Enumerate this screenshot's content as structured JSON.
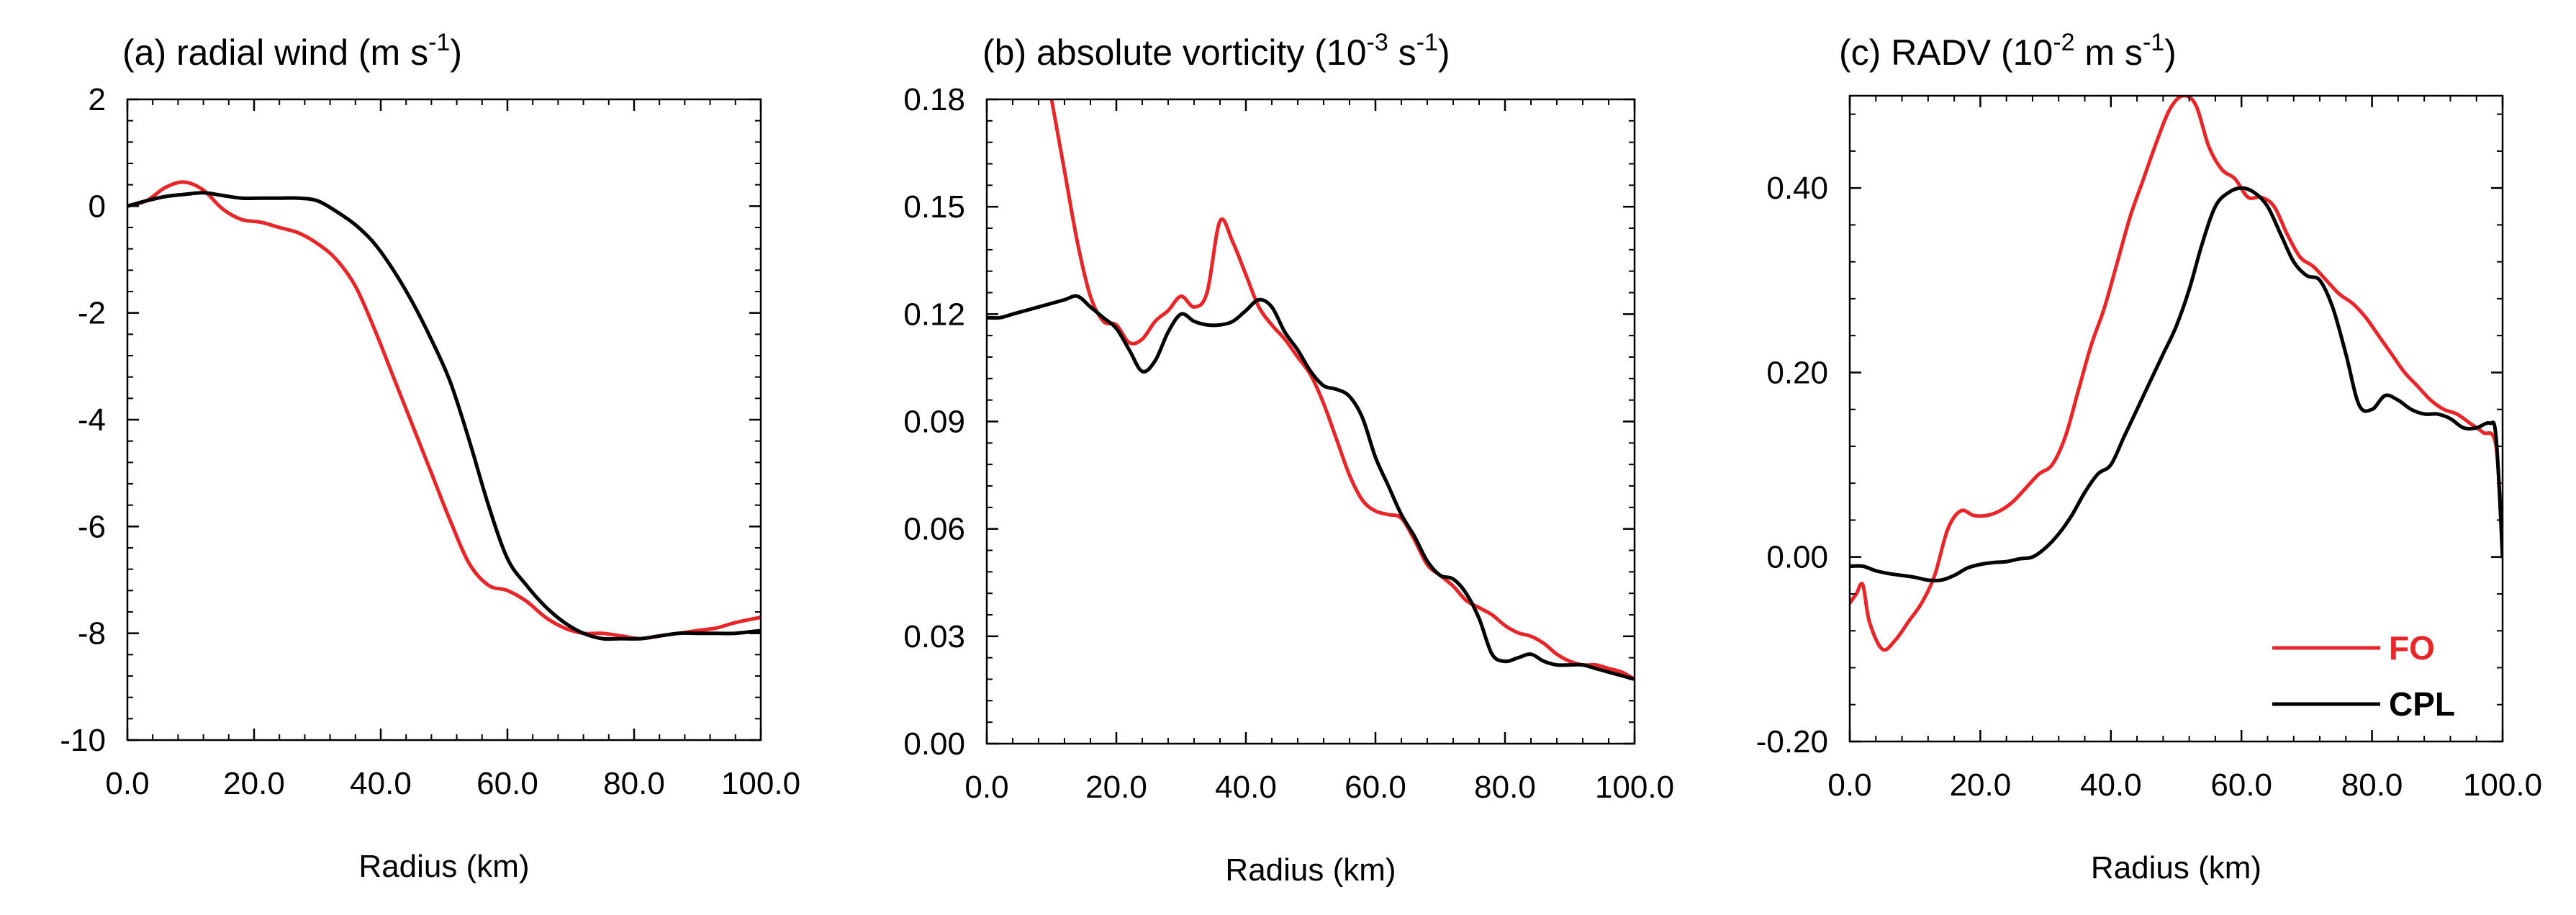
{
  "chart_data": [
    {
      "type": "line",
      "panel": "a",
      "title": {
        "prefix": "(a) radial wind (m s",
        "sup": "-1",
        "suffix": ")"
      },
      "xlabel": "Radius (km)",
      "ylabel": "",
      "xlim": [
        0,
        100
      ],
      "ylim": [
        -10,
        2
      ],
      "xticks": [
        0,
        20,
        40,
        60,
        80,
        100
      ],
      "xtick_labels": [
        "0.0",
        "20.0",
        "40.0",
        "60.0",
        "80.0",
        "100.0"
      ],
      "yticks": [
        -10,
        -8,
        -6,
        -4,
        -2,
        0,
        2
      ],
      "ytick_labels": [
        "-10",
        "-8",
        "-6",
        "-4",
        "-2",
        "0",
        "2"
      ],
      "series": [
        {
          "name": "FO",
          "color": "#e8262a",
          "x": [
            0,
            3,
            6,
            9,
            12,
            15,
            18,
            21,
            24,
            27,
            30,
            33,
            36,
            39,
            42,
            45,
            48,
            51,
            54,
            57,
            60,
            63,
            66,
            69,
            72,
            75,
            78,
            81,
            84,
            87,
            90,
            93,
            96,
            100
          ],
          "y": [
            0,
            0.1,
            0.35,
            0.45,
            0.3,
            -0.05,
            -0.25,
            -0.3,
            -0.4,
            -0.5,
            -0.7,
            -1.0,
            -1.5,
            -2.3,
            -3.2,
            -4.1,
            -5.0,
            -5.9,
            -6.7,
            -7.1,
            -7.2,
            -7.4,
            -7.7,
            -7.9,
            -8.0,
            -8.0,
            -8.05,
            -8.1,
            -8.05,
            -8.0,
            -7.95,
            -7.9,
            -7.8,
            -7.7
          ]
        },
        {
          "name": "CPL",
          "color": "#000000",
          "x": [
            0,
            3,
            6,
            9,
            12,
            15,
            18,
            21,
            24,
            27,
            30,
            33,
            36,
            39,
            42,
            45,
            48,
            51,
            54,
            57,
            60,
            63,
            66,
            69,
            72,
            75,
            78,
            81,
            84,
            87,
            90,
            93,
            96,
            100
          ],
          "y": [
            0,
            0.1,
            0.18,
            0.22,
            0.25,
            0.2,
            0.15,
            0.15,
            0.15,
            0.15,
            0.1,
            -0.1,
            -0.35,
            -0.7,
            -1.2,
            -1.8,
            -2.5,
            -3.3,
            -4.4,
            -5.6,
            -6.6,
            -7.1,
            -7.5,
            -7.8,
            -8.0,
            -8.1,
            -8.1,
            -8.1,
            -8.05,
            -8.0,
            -8.0,
            -8.0,
            -8.0,
            -7.95
          ]
        }
      ]
    },
    {
      "type": "line",
      "panel": "b",
      "title": {
        "prefix": "(b) absolute vorticity (10",
        "sup": "-3",
        "middle": " s",
        "sup2": "-1",
        "suffix": ")"
      },
      "xlabel": "Radius (km)",
      "ylabel": "",
      "xlim": [
        0,
        100
      ],
      "ylim": [
        0,
        0.18
      ],
      "xticks": [
        0,
        20,
        40,
        60,
        80,
        100
      ],
      "xtick_labels": [
        "0.0",
        "20.0",
        "40.0",
        "60.0",
        "80.0",
        "100.0"
      ],
      "yticks": [
        0,
        0.03,
        0.06,
        0.09,
        0.12,
        0.15,
        0.18
      ],
      "ytick_labels": [
        "0.00",
        "0.03",
        "0.06",
        "0.09",
        "0.12",
        "0.15",
        "0.18"
      ],
      "series": [
        {
          "name": "FO",
          "color": "#e8262a",
          "x": [
            10,
            12,
            14,
            16,
            18,
            20,
            22,
            24,
            26,
            28,
            30,
            32,
            34,
            36,
            38,
            40,
            42,
            44,
            46,
            48,
            50,
            52,
            54,
            56,
            58,
            60,
            62,
            64,
            66,
            68,
            70,
            72,
            74,
            76,
            78,
            80,
            82,
            84,
            86,
            88,
            90,
            92,
            94,
            96,
            98,
            100
          ],
          "y": [
            0.18,
            0.16,
            0.14,
            0.125,
            0.118,
            0.117,
            0.112,
            0.113,
            0.118,
            0.121,
            0.125,
            0.122,
            0.126,
            0.146,
            0.14,
            0.131,
            0.122,
            0.117,
            0.113,
            0.108,
            0.103,
            0.095,
            0.085,
            0.075,
            0.068,
            0.065,
            0.064,
            0.063,
            0.057,
            0.05,
            0.047,
            0.044,
            0.04,
            0.038,
            0.036,
            0.033,
            0.031,
            0.03,
            0.028,
            0.025,
            0.023,
            0.022,
            0.022,
            0.021,
            0.02,
            0.018
          ]
        },
        {
          "name": "CPL",
          "color": "#000000",
          "x": [
            0,
            2,
            4,
            6,
            8,
            10,
            12,
            14,
            16,
            18,
            20,
            22,
            24,
            26,
            28,
            30,
            32,
            34,
            36,
            38,
            40,
            42,
            44,
            46,
            48,
            50,
            52,
            54,
            56,
            58,
            60,
            62,
            64,
            66,
            68,
            70,
            72,
            74,
            76,
            78,
            80,
            82,
            84,
            86,
            88,
            90,
            92,
            94,
            96,
            98,
            100
          ],
          "y": [
            0.119,
            0.119,
            0.12,
            0.121,
            0.122,
            0.123,
            0.124,
            0.125,
            0.122,
            0.119,
            0.116,
            0.11,
            0.104,
            0.107,
            0.115,
            0.12,
            0.118,
            0.117,
            0.117,
            0.118,
            0.121,
            0.124,
            0.122,
            0.115,
            0.11,
            0.104,
            0.1,
            0.099,
            0.097,
            0.091,
            0.08,
            0.072,
            0.064,
            0.058,
            0.051,
            0.047,
            0.046,
            0.042,
            0.035,
            0.025,
            0.023,
            0.024,
            0.025,
            0.023,
            0.022,
            0.022,
            0.022,
            0.021,
            0.02,
            0.019,
            0.018
          ]
        }
      ]
    },
    {
      "type": "line",
      "panel": "c",
      "title": {
        "prefix": "(c) RADV (10",
        "sup": "-2",
        "middle": " m s",
        "sup2": "-1",
        "suffix": ")"
      },
      "xlabel": "Radius (km)",
      "ylabel": "",
      "xlim": [
        0,
        100
      ],
      "ylim": [
        -0.2,
        0.5
      ],
      "xticks": [
        0,
        20,
        40,
        60,
        80,
        100
      ],
      "xtick_labels": [
        "0.0",
        "20.0",
        "40.0",
        "60.0",
        "80.0",
        "100.0"
      ],
      "yticks": [
        -0.2,
        0,
        0.2,
        0.4
      ],
      "ytick_labels": [
        "-0.20",
        "0.00",
        "0.20",
        "0.40"
      ],
      "legend": {
        "position": "bottom-right",
        "entries": [
          "FO",
          "CPL"
        ]
      },
      "series": [
        {
          "name": "FO",
          "color": "#e8262a",
          "x": [
            0,
            1,
            2,
            3,
            5,
            7,
            9,
            11,
            13,
            15,
            17,
            19,
            21,
            23,
            25,
            27,
            29,
            31,
            33,
            35,
            37,
            39,
            41,
            43,
            45,
            47,
            49,
            51,
            53,
            55,
            57,
            59,
            61,
            63,
            65,
            67,
            69,
            71,
            73,
            75,
            77,
            79,
            81,
            83,
            85,
            87,
            89,
            91,
            93,
            95,
            97,
            99,
            100
          ],
          "y": [
            -0.05,
            -0.04,
            -0.03,
            -0.07,
            -0.1,
            -0.09,
            -0.07,
            -0.05,
            -0.02,
            0.03,
            0.05,
            0.045,
            0.045,
            0.05,
            0.06,
            0.075,
            0.09,
            0.1,
            0.13,
            0.18,
            0.23,
            0.27,
            0.32,
            0.37,
            0.41,
            0.45,
            0.485,
            0.5,
            0.49,
            0.445,
            0.42,
            0.41,
            0.39,
            0.39,
            0.38,
            0.35,
            0.325,
            0.315,
            0.3,
            0.285,
            0.275,
            0.26,
            0.24,
            0.22,
            0.2,
            0.185,
            0.17,
            0.16,
            0.155,
            0.145,
            0.135,
            0.12,
            0.0
          ]
        },
        {
          "name": "CPL",
          "color": "#000000",
          "x": [
            0,
            2,
            4,
            6,
            8,
            10,
            12,
            14,
            16,
            18,
            20,
            22,
            24,
            26,
            28,
            30,
            32,
            34,
            36,
            38,
            40,
            42,
            44,
            46,
            48,
            50,
            52,
            54,
            56,
            58,
            60,
            62,
            64,
            66,
            68,
            70,
            72,
            74,
            76,
            78,
            80,
            82,
            84,
            86,
            88,
            90,
            92,
            94,
            96,
            98,
            99,
            100
          ],
          "y": [
            -0.01,
            -0.01,
            -0.015,
            -0.018,
            -0.02,
            -0.022,
            -0.025,
            -0.025,
            -0.02,
            -0.012,
            -0.008,
            -0.006,
            -0.005,
            -0.002,
            0.0,
            0.01,
            0.025,
            0.045,
            0.07,
            0.09,
            0.1,
            0.13,
            0.16,
            0.19,
            0.22,
            0.25,
            0.29,
            0.34,
            0.38,
            0.395,
            0.4,
            0.395,
            0.38,
            0.35,
            0.32,
            0.305,
            0.3,
            0.27,
            0.22,
            0.165,
            0.16,
            0.175,
            0.17,
            0.16,
            0.155,
            0.155,
            0.15,
            0.14,
            0.14,
            0.145,
            0.13,
            0.0
          ]
        }
      ]
    }
  ]
}
